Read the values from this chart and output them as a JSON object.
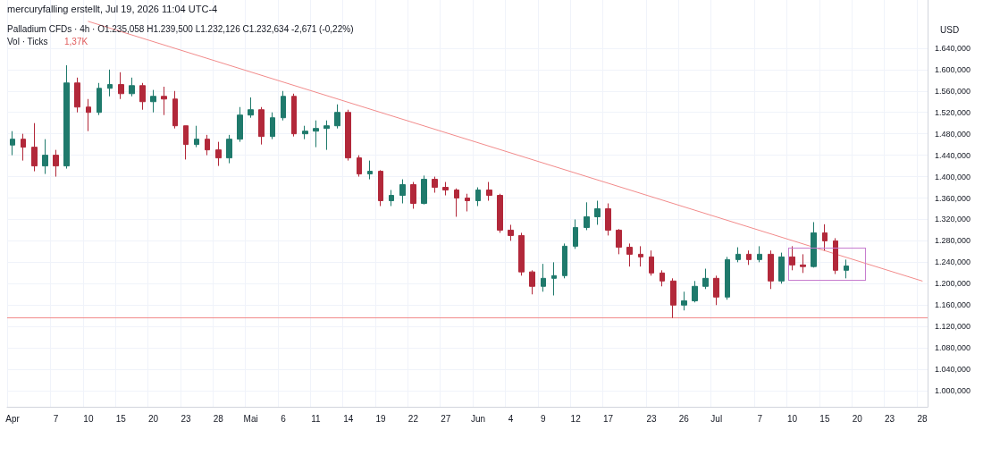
{
  "chart_data": {
    "type": "candlestick",
    "title": "Palladium CFDs · 4h · O1.235,058 H1.239,500 L1.232,126 C1.232,634 -2,671 (-0,22%)",
    "ylabel": "USD",
    "annotations": [
      "mercuryfalling erstellt, Jul 19, 2026 11:04 UTC-4",
      "Vol · Ticks",
      "1,37K"
    ],
    "categories": [
      "Apr",
      null,
      null,
      null,
      "7",
      null,
      null,
      "10",
      null,
      null,
      "15",
      null,
      null,
      "20",
      null,
      null,
      "23",
      null,
      null,
      "28",
      null,
      null,
      "Mai",
      null,
      null,
      "6",
      null,
      null,
      "11",
      null,
      null,
      "14",
      null,
      null,
      "19",
      null,
      null,
      "22",
      null,
      null,
      "27",
      null,
      null,
      "Jun",
      null,
      null,
      "4",
      null,
      null,
      "9",
      null,
      null,
      "12",
      null,
      null,
      "17",
      null,
      null,
      null,
      "23",
      null,
      null,
      "26",
      null,
      null,
      "Jul",
      null,
      null,
      null,
      "7",
      null,
      null,
      "10",
      null,
      null,
      "15",
      null,
      null,
      "20",
      null,
      null,
      "23",
      null,
      null,
      "28"
    ],
    "ohlc": [
      [
        1459,
        1485,
        1440,
        1470
      ],
      [
        1470,
        1480,
        1430,
        1455
      ],
      [
        1455,
        1500,
        1410,
        1420
      ],
      [
        1420,
        1470,
        1405,
        1440
      ],
      [
        1440,
        1450,
        1400,
        1420
      ],
      [
        1420,
        1608,
        1415,
        1575
      ],
      [
        1575,
        1585,
        1520,
        1530
      ],
      [
        1530,
        1545,
        1485,
        1520
      ],
      [
        1520,
        1575,
        1515,
        1565
      ],
      [
        1565,
        1600,
        1550,
        1572
      ],
      [
        1572,
        1595,
        1545,
        1555
      ],
      [
        1555,
        1585,
        1550,
        1570
      ],
      [
        1570,
        1575,
        1525,
        1540
      ],
      [
        1540,
        1562,
        1520,
        1550
      ],
      [
        1550,
        1568,
        1515,
        1545
      ],
      [
        1545,
        1560,
        1490,
        1495
      ],
      [
        1495,
        1495,
        1432,
        1460
      ],
      [
        1460,
        1495,
        1455,
        1470
      ],
      [
        1470,
        1478,
        1440,
        1450
      ],
      [
        1450,
        1465,
        1420,
        1435
      ],
      [
        1435,
        1478,
        1425,
        1470
      ],
      [
        1470,
        1530,
        1465,
        1515
      ],
      [
        1515,
        1548,
        1510,
        1525
      ],
      [
        1525,
        1530,
        1460,
        1475
      ],
      [
        1475,
        1520,
        1470,
        1510
      ],
      [
        1510,
        1560,
        1505,
        1550
      ],
      [
        1550,
        1555,
        1475,
        1480
      ],
      [
        1480,
        1495,
        1470,
        1485
      ],
      [
        1485,
        1505,
        1455,
        1490
      ],
      [
        1490,
        1505,
        1450,
        1495
      ],
      [
        1495,
        1535,
        1490,
        1520
      ],
      [
        1520,
        1525,
        1430,
        1435
      ],
      [
        1435,
        1440,
        1400,
        1405
      ],
      [
        1405,
        1430,
        1395,
        1410
      ],
      [
        1410,
        1412,
        1345,
        1355
      ],
      [
        1355,
        1375,
        1345,
        1365
      ],
      [
        1365,
        1395,
        1350,
        1385
      ],
      [
        1385,
        1390,
        1340,
        1350
      ],
      [
        1350,
        1402,
        1348,
        1395
      ],
      [
        1395,
        1400,
        1370,
        1380
      ],
      [
        1380,
        1390,
        1365,
        1375
      ],
      [
        1375,
        1378,
        1325,
        1360
      ],
      [
        1360,
        1368,
        1335,
        1355
      ],
      [
        1355,
        1380,
        1345,
        1375
      ],
      [
        1375,
        1390,
        1355,
        1365
      ],
      [
        1365,
        1368,
        1295,
        1300
      ],
      [
        1300,
        1310,
        1280,
        1290
      ],
      [
        1290,
        1295,
        1215,
        1222
      ],
      [
        1222,
        1225,
        1180,
        1195
      ],
      [
        1195,
        1237,
        1185,
        1210
      ],
      [
        1210,
        1240,
        1178,
        1215
      ],
      [
        1215,
        1275,
        1210,
        1270
      ],
      [
        1270,
        1320,
        1265,
        1305
      ],
      [
        1305,
        1352,
        1300,
        1325
      ],
      [
        1325,
        1355,
        1310,
        1340
      ],
      [
        1340,
        1350,
        1290,
        1300
      ],
      [
        1300,
        1302,
        1255,
        1268
      ],
      [
        1268,
        1275,
        1232,
        1255
      ],
      [
        1255,
        1270,
        1232,
        1250
      ],
      [
        1250,
        1262,
        1215,
        1220
      ],
      [
        1220,
        1225,
        1195,
        1205
      ],
      [
        1205,
        1210,
        1136,
        1160
      ],
      [
        1160,
        1185,
        1150,
        1168
      ],
      [
        1168,
        1205,
        1165,
        1195
      ],
      [
        1195,
        1228,
        1190,
        1210
      ],
      [
        1210,
        1215,
        1160,
        1175
      ],
      [
        1175,
        1250,
        1170,
        1245
      ],
      [
        1245,
        1268,
        1240,
        1255
      ],
      [
        1255,
        1262,
        1235,
        1245
      ],
      [
        1245,
        1270,
        1240,
        1255
      ],
      [
        1255,
        1262,
        1190,
        1205
      ],
      [
        1205,
        1258,
        1200,
        1250
      ],
      [
        1250,
        1270,
        1225,
        1235
      ],
      [
        1235,
        1255,
        1220,
        1232
      ],
      [
        1232,
        1315,
        1230,
        1295
      ],
      [
        1295,
        1311,
        1262,
        1280
      ],
      [
        1280,
        1285,
        1218,
        1225
      ],
      [
        1225,
        1245,
        1210,
        1233
      ],
      null,
      null,
      null,
      null,
      null,
      null,
      null
    ],
    "colors": [
      "#1f7a6c",
      "#b2283a",
      "#b2283a",
      "#1f7a6c",
      "#b2283a",
      "#1f7a6c",
      "#b2283a",
      "#b2283a",
      "#1f7a6c",
      "#1f7a6c",
      "#b2283a",
      "#1f7a6c",
      "#b2283a",
      "#1f7a6c",
      "#b2283a",
      "#b2283a",
      "#b2283a",
      "#1f7a6c",
      "#b2283a",
      "#b2283a",
      "#1f7a6c",
      "#1f7a6c",
      "#1f7a6c",
      "#b2283a",
      "#1f7a6c",
      "#1f7a6c",
      "#b2283a",
      "#1f7a6c",
      "#1f7a6c",
      "#1f7a6c",
      "#1f7a6c",
      "#b2283a",
      "#b2283a",
      "#1f7a6c",
      "#b2283a",
      "#1f7a6c",
      "#1f7a6c",
      "#b2283a",
      "#1f7a6c",
      "#b2283a",
      "#b2283a",
      "#b2283a",
      "#b2283a",
      "#1f7a6c",
      "#b2283a",
      "#b2283a",
      "#b2283a",
      "#b2283a",
      "#b2283a",
      "#1f7a6c",
      "#1f7a6c",
      "#1f7a6c",
      "#1f7a6c",
      "#1f7a6c",
      "#1f7a6c",
      "#b2283a",
      "#b2283a",
      "#b2283a",
      "#b2283a",
      "#b2283a",
      "#b2283a",
      "#b2283a",
      "#1f7a6c",
      "#1f7a6c",
      "#1f7a6c",
      "#b2283a",
      "#1f7a6c",
      "#1f7a6c",
      "#b2283a",
      "#1f7a6c",
      "#b2283a",
      "#1f7a6c",
      "#b2283a",
      "#b2283a",
      "#1f7a6c",
      "#b2283a",
      "#b2283a",
      "#1f7a6c",
      null,
      null,
      null,
      null,
      null,
      null,
      null
    ],
    "series": [
      {
        "type": "line",
        "color": "#f28b8b",
        "values": [
          null,
          null,
          null,
          null,
          null,
          null,
          null,
          1690,
          null,
          null,
          null,
          null,
          null,
          null,
          null,
          null,
          null,
          null,
          null,
          null,
          null,
          null,
          null,
          null,
          null,
          null,
          null,
          null,
          null,
          null,
          null,
          null,
          null,
          null,
          null,
          null,
          null,
          null,
          null,
          null,
          null,
          null,
          null,
          null,
          null,
          null,
          null,
          null,
          null,
          null,
          null,
          null,
          null,
          null,
          null,
          null,
          null,
          null,
          null,
          null,
          null,
          null,
          null,
          null,
          null,
          null,
          null,
          null,
          null,
          null,
          null,
          null,
          null,
          null,
          null,
          null,
          null,
          null,
          null,
          null,
          null,
          null,
          null,
          null,
          1205
        ]
      }
    ],
    "ref_lines": [
      {
        "axis": "y",
        "value": 1136,
        "color": "#f28b8b"
      }
    ],
    "ylim": [
      970,
      1730
    ],
    "yticks": [
      {
        "value": 1000,
        "label": "1.000,000"
      },
      {
        "value": 1040,
        "label": "1.040,000"
      },
      {
        "value": 1080,
        "label": "1.080,000"
      },
      {
        "value": 1120,
        "label": "1.120,000"
      },
      {
        "value": 1160,
        "label": "1.160,000"
      },
      {
        "value": 1200,
        "label": "1.200,000"
      },
      {
        "value": 1240,
        "label": "1.240,000"
      },
      {
        "value": 1280,
        "label": "1.280,000"
      },
      {
        "value": 1320,
        "label": "1.320,000"
      },
      {
        "value": 1360,
        "label": "1.360,000"
      },
      {
        "value": 1400,
        "label": "1.400,000"
      },
      {
        "value": 1440,
        "label": "1.440,000"
      },
      {
        "value": 1480,
        "label": "1.480,000"
      },
      {
        "value": 1520,
        "label": "1.520,000"
      },
      {
        "value": 1560,
        "label": "1.560,000"
      },
      {
        "value": 1600,
        "label": "1.600,000"
      },
      {
        "value": 1640,
        "label": "1.640,000"
      }
    ],
    "grid": true,
    "line_style": "solid",
    "marker": "none"
  }
}
